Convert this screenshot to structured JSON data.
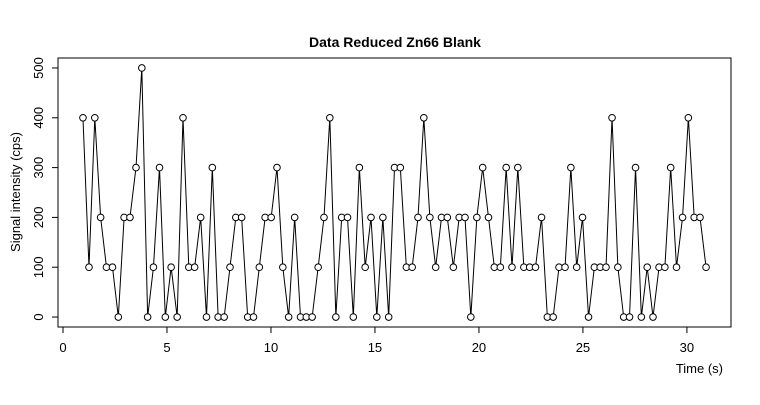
{
  "chart_data": {
    "type": "line",
    "title": "Data Reduced Zn66 Blank",
    "x_label": "Time (s)",
    "y_label": "Signal intensity (cps)",
    "x": [
      0.96,
      1.25,
      1.53,
      1.81,
      2.09,
      2.38,
      2.66,
      2.94,
      3.22,
      3.51,
      3.79,
      4.07,
      4.35,
      4.64,
      4.92,
      5.2,
      5.49,
      5.77,
      6.05,
      6.33,
      6.62,
      6.9,
      7.18,
      7.46,
      7.75,
      8.03,
      8.31,
      8.59,
      8.88,
      9.16,
      9.44,
      9.72,
      10.01,
      10.29,
      10.57,
      10.85,
      11.14,
      11.42,
      11.7,
      11.98,
      12.27,
      12.55,
      12.83,
      13.12,
      13.4,
      13.68,
      13.96,
      14.25,
      14.53,
      14.81,
      15.09,
      15.38,
      15.66,
      15.94,
      16.22,
      16.51,
      16.79,
      17.07,
      17.35,
      17.64,
      17.92,
      18.2,
      18.48,
      18.77,
      19.05,
      19.33,
      19.61,
      19.9,
      20.18,
      20.46,
      20.74,
      21.03,
      21.31,
      21.59,
      21.87,
      22.16,
      22.44,
      22.72,
      23.01,
      23.29,
      23.57,
      23.85,
      24.14,
      24.42,
      24.7,
      24.98,
      25.27,
      25.55,
      25.83,
      26.11,
      26.4,
      26.68,
      26.96,
      27.24,
      27.53,
      27.81,
      28.09,
      28.37,
      28.66,
      28.94,
      29.22,
      29.5,
      29.79,
      30.07,
      30.35,
      30.63,
      30.92
    ],
    "values": [
      400,
      100,
      400,
      200,
      100,
      100,
      0,
      200,
      200,
      300,
      500,
      0,
      100,
      300,
      0,
      100,
      0,
      400,
      100,
      100,
      200,
      0,
      300,
      0,
      0,
      100,
      200,
      200,
      0,
      0,
      100,
      200,
      200,
      300,
      100,
      0,
      200,
      0,
      0,
      0,
      100,
      200,
      400,
      0,
      200,
      200,
      0,
      300,
      100,
      200,
      0,
      200,
      0,
      300,
      300,
      100,
      100,
      200,
      400,
      200,
      100,
      200,
      200,
      100,
      200,
      200,
      0,
      200,
      300,
      200,
      100,
      100,
      300,
      100,
      300,
      100,
      100,
      100,
      200,
      0,
      0,
      100,
      100,
      300,
      100,
      200,
      0,
      100,
      100,
      100,
      400,
      100,
      0,
      0,
      300,
      0,
      100,
      0,
      100,
      100,
      300,
      100,
      200,
      400,
      200,
      200,
      100
    ],
    "color": "#000000",
    "xlim": [
      -0.24,
      32.12
    ],
    "xticks": [
      0,
      5,
      10,
      15,
      20,
      25,
      30
    ],
    "ylim": [
      -20,
      520
    ],
    "yticks": [
      0,
      100,
      200,
      300,
      400,
      500
    ]
  }
}
